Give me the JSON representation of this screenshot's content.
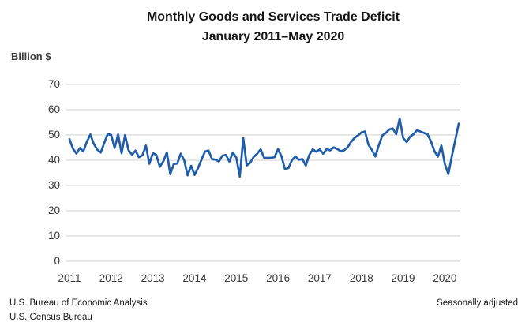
{
  "title": {
    "line1": "Monthly Goods and Services Trade Deficit",
    "line2": "January 2011–May 2020"
  },
  "y_axis_unit_label": "Billion $",
  "footer": {
    "source_line1": "U.S. Bureau of Economic Analysis",
    "source_line2": "U.S. Census Bureau",
    "note": "Seasonally adjusted"
  },
  "colors": {
    "line": "#1f5ca9",
    "grid": "#d9d9d9",
    "tick_text": "#3a3a3a"
  },
  "chart_data": {
    "type": "line",
    "title": "Monthly Goods and Services Trade Deficit",
    "subtitle": "January 2011–May 2020",
    "ylabel": "Billion $",
    "ylim": [
      0,
      70
    ],
    "ytick_step": 10,
    "ytick_labels": [
      "0",
      "10",
      "20",
      "30",
      "40",
      "50",
      "60",
      "70"
    ],
    "x_tick_labels": [
      "2011",
      "2012",
      "2013",
      "2014",
      "2015",
      "2016",
      "2017",
      "2018",
      "2019",
      "2020"
    ],
    "x_start_month": "2011-01",
    "x_end_month": "2020-05",
    "grid": "horizontal",
    "legend": "none",
    "annotation": "Seasonally adjusted",
    "series": [
      {
        "name": "Goods and services trade deficit (billion $, seasonally adjusted)",
        "color": "#1f5ca9",
        "values": [
          48.3,
          44.6,
          42.7,
          44.8,
          43.5,
          47.3,
          50.2,
          46.5,
          44.2,
          43.1,
          46.8,
          50.3,
          50.0,
          44.9,
          50.2,
          42.8,
          49.9,
          44.0,
          42.2,
          43.8,
          41.2,
          42.0,
          45.8,
          38.6,
          42.8,
          42.1,
          37.4,
          39.5,
          43.1,
          34.5,
          38.5,
          38.7,
          42.6,
          40.0,
          34.0,
          37.8,
          34.2,
          37.0,
          40.3,
          43.5,
          43.8,
          40.5,
          40.2,
          39.5,
          41.8,
          42.1,
          39.5,
          43.1,
          41.0,
          33.5,
          48.8,
          37.9,
          39.0,
          41.3,
          42.6,
          44.3,
          41.0,
          40.9,
          41.0,
          41.2,
          44.4,
          41.6,
          36.4,
          36.9,
          40.0,
          41.5,
          40.2,
          40.5,
          37.9,
          42.1,
          44.3,
          43.4,
          44.3,
          42.6,
          44.4,
          43.9,
          45.1,
          44.5,
          43.6,
          43.9,
          45.1,
          47.2,
          48.8,
          49.8,
          51.0,
          51.4,
          46.2,
          44.1,
          41.5,
          46.0,
          49.8,
          50.8,
          52.2,
          52.6,
          50.3,
          56.5,
          48.8,
          47.2,
          49.3,
          50.3,
          51.9,
          51.3,
          50.8,
          50.3,
          47.5,
          43.6,
          41.4,
          45.8,
          38.5,
          34.5,
          41.5,
          48.0,
          54.5
        ]
      }
    ]
  }
}
